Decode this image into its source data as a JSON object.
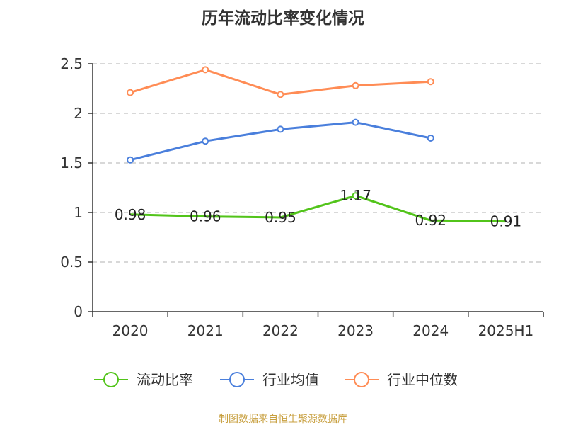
{
  "chart_data": {
    "type": "line",
    "title": "历年流动比率变化情况",
    "xlabel": "",
    "ylabel": "",
    "categories": [
      "2020",
      "2021",
      "2022",
      "2023",
      "2024",
      "2025H1"
    ],
    "ylim": [
      0,
      2.5
    ],
    "yticks": [
      "0",
      "0.5",
      "1",
      "1.5",
      "2",
      "2.5"
    ],
    "grid": true,
    "legend_position": "bottom",
    "series": [
      {
        "name": "流动比率",
        "color": "#52c41a",
        "values": [
          0.98,
          0.96,
          0.95,
          1.17,
          0.92,
          0.91
        ],
        "labels": [
          "0.98",
          "0.96",
          "0.95",
          "1.17",
          "0.92",
          "0.91"
        ],
        "markers": [
          false,
          false,
          false,
          true,
          false,
          false
        ]
      },
      {
        "name": "行业均值",
        "color": "#4a7fdc",
        "values": [
          1.53,
          1.72,
          1.84,
          1.91,
          1.75,
          null
        ],
        "markers": [
          true,
          true,
          true,
          true,
          true,
          false
        ]
      },
      {
        "name": "行业中位数",
        "color": "#ff8c55",
        "values": [
          2.21,
          2.44,
          2.19,
          2.28,
          2.32,
          null
        ],
        "markers": [
          true,
          true,
          true,
          true,
          true,
          false
        ]
      }
    ]
  },
  "footer": {
    "source": "制图数据来自恒生聚源数据库"
  }
}
